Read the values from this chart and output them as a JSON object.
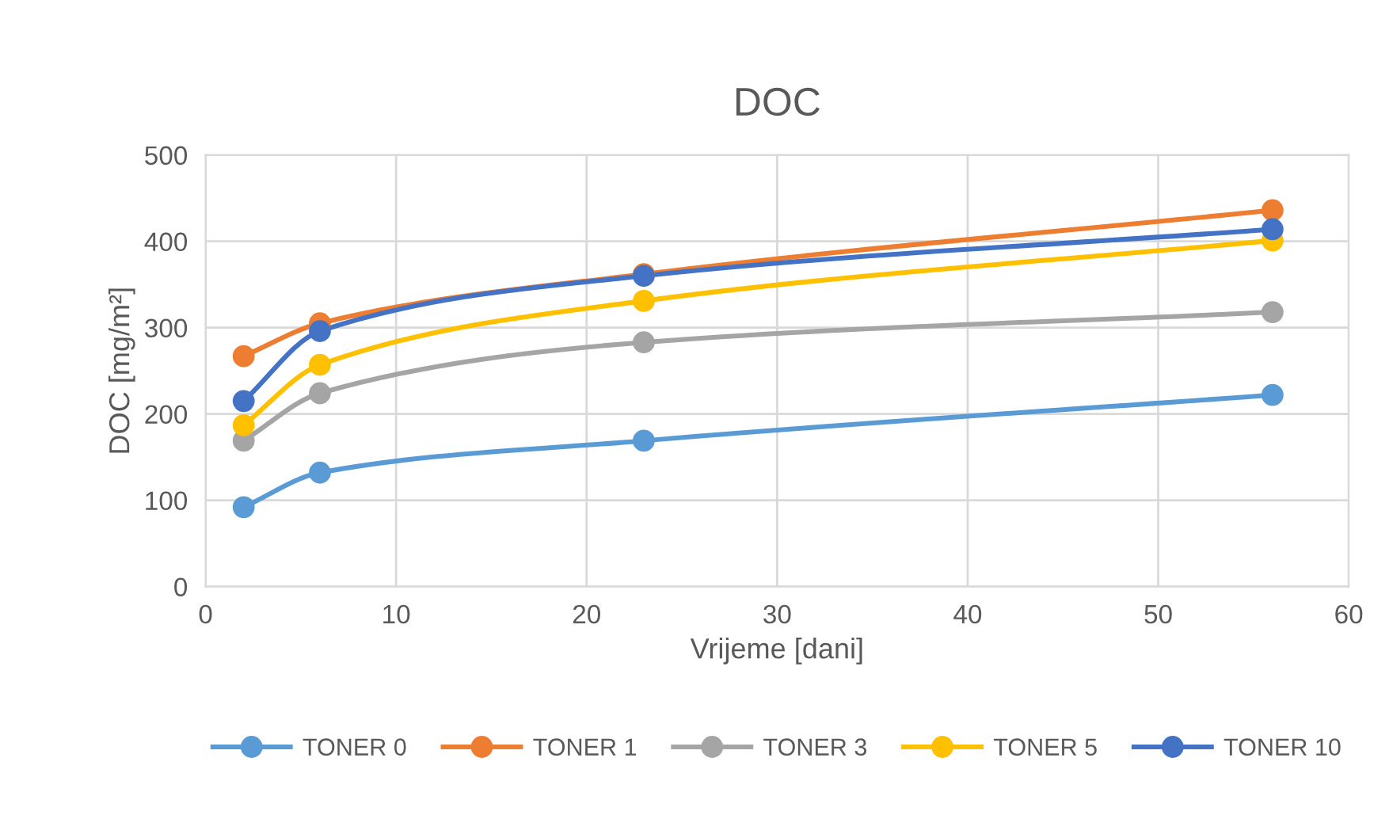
{
  "chart_data": {
    "type": "line",
    "title": "DOC",
    "xlabel": "Vrijeme [dani]",
    "ylabel": "DOC [mg/m²]",
    "x": [
      2,
      6,
      23,
      56
    ],
    "series": [
      {
        "name": "TONER 0",
        "color": "#5b9bd5",
        "values": [
          92,
          132,
          169,
          222
        ]
      },
      {
        "name": "TONER 1",
        "color": "#ed7d31",
        "values": [
          267,
          305,
          362,
          436
        ]
      },
      {
        "name": "TONER 3",
        "color": "#a5a5a5",
        "values": [
          169,
          224,
          283,
          318
        ]
      },
      {
        "name": "TONER 5",
        "color": "#ffc000",
        "values": [
          187,
          257,
          331,
          401
        ]
      },
      {
        "name": "TONER 10",
        "color": "#4472c4",
        "values": [
          215,
          296,
          360,
          414
        ]
      }
    ],
    "xlim": [
      0,
      60
    ],
    "xticks": [
      0,
      10,
      20,
      30,
      40,
      50,
      60
    ],
    "ylim": [
      0,
      500
    ],
    "yticks": [
      0,
      100,
      200,
      300,
      400,
      500
    ],
    "grid": true,
    "legend": "bottom",
    "marker": "circle",
    "line_style": "solid"
  }
}
